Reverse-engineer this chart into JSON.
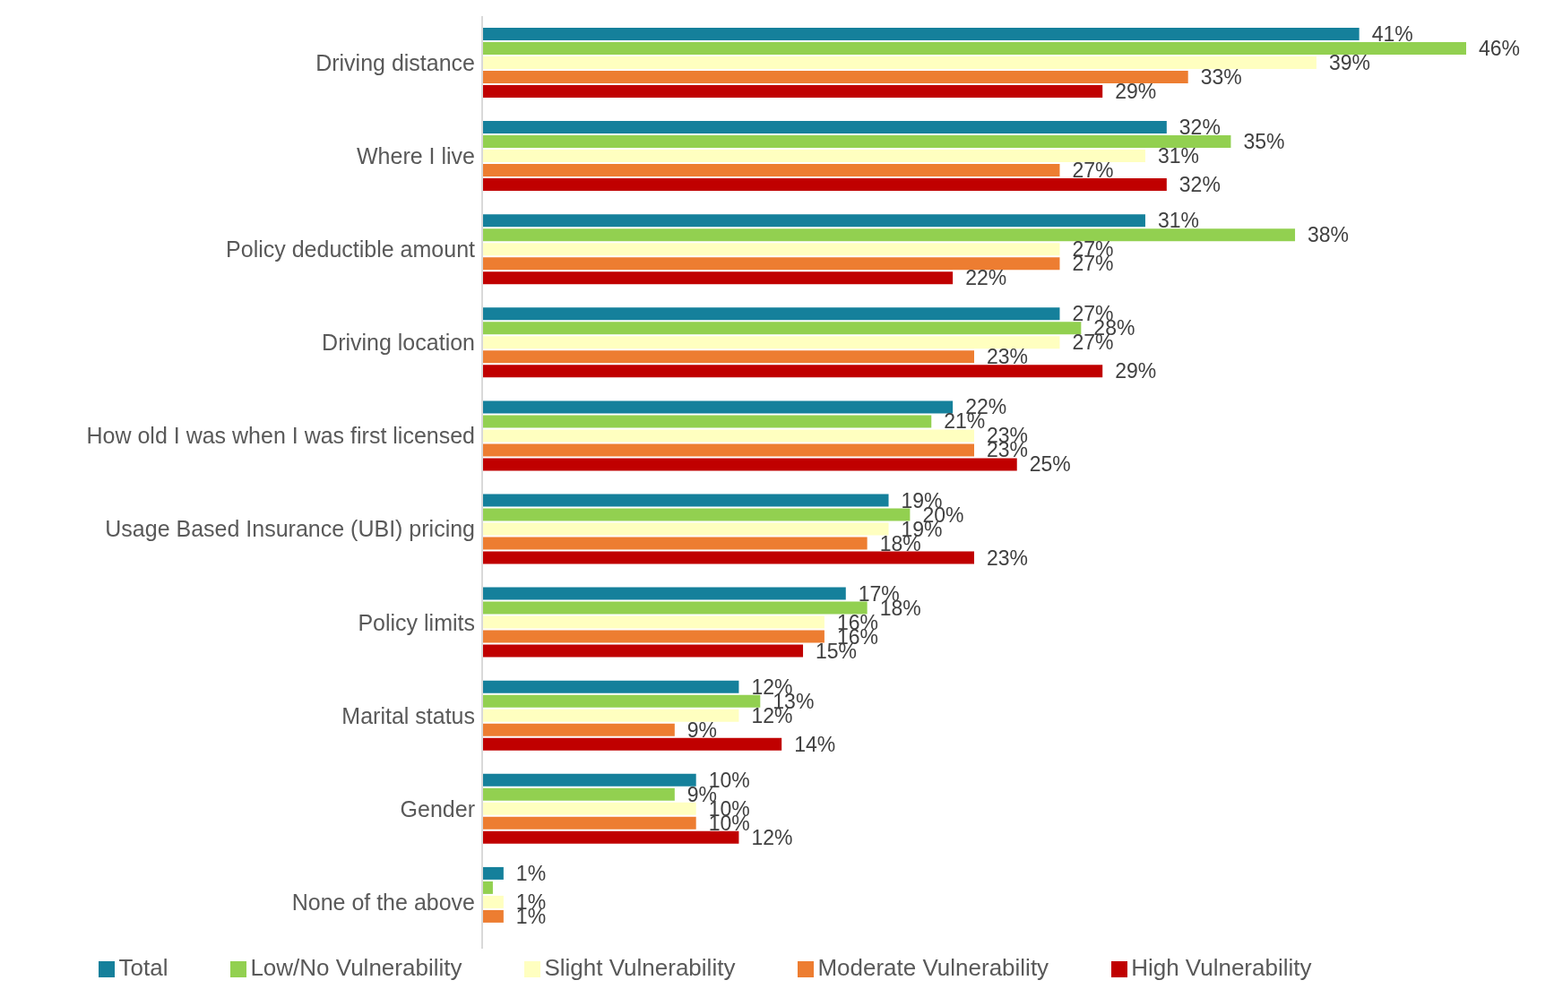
{
  "chart_data": {
    "type": "bar",
    "orientation": "horizontal",
    "categories": [
      "Driving distance",
      "Where I live",
      "Policy deductible amount",
      "Driving location",
      "How old I was when I was first licensed",
      "Usage Based Insurance (UBI) pricing",
      "Policy limits",
      "Marital status",
      "Gender",
      "None of the above"
    ],
    "series": [
      {
        "name": "Total",
        "color": "#15809b",
        "values": [
          41,
          32,
          31,
          27,
          22,
          19,
          17,
          12,
          10,
          1
        ],
        "value_labels": [
          "41%",
          "32%",
          "31%",
          "27%",
          "22%",
          "19%",
          "17%",
          "12%",
          "10%",
          "1%"
        ]
      },
      {
        "name": "Low/No Vulnerability",
        "color": "#92d050",
        "values": [
          46,
          35,
          38,
          28,
          21,
          20,
          18,
          13,
          9,
          0.5
        ],
        "value_labels": [
          "46%",
          "35%",
          "38%",
          "28%",
          "21%",
          "20%",
          "18%",
          "13%",
          "9%",
          null
        ]
      },
      {
        "name": "Slight Vulnerability",
        "color": "#ffffc0",
        "values": [
          39,
          31,
          27,
          27,
          23,
          19,
          16,
          12,
          10,
          1
        ],
        "value_labels": [
          "39%",
          "31%",
          "27%",
          "27%",
          "23%",
          "19%",
          "16%",
          "12%",
          "10%",
          "1%"
        ]
      },
      {
        "name": "Moderate Vulnerability",
        "color": "#ed7d31",
        "values": [
          33,
          27,
          27,
          23,
          23,
          18,
          16,
          9,
          10,
          1
        ],
        "value_labels": [
          "33%",
          "27%",
          "27%",
          "23%",
          "23%",
          "18%",
          "16%",
          "9%",
          "10%",
          "1%"
        ]
      },
      {
        "name": "High Vulnerability",
        "color": "#c00000",
        "values": [
          29,
          32,
          22,
          29,
          25,
          23,
          15,
          14,
          12,
          0
        ],
        "value_labels": [
          "29%",
          "32%",
          "22%",
          "29%",
          "25%",
          "23%",
          "15%",
          "14%",
          "12%",
          null
        ]
      }
    ],
    "legend": "bottom",
    "grid": false,
    "tick_labels": "y"
  }
}
